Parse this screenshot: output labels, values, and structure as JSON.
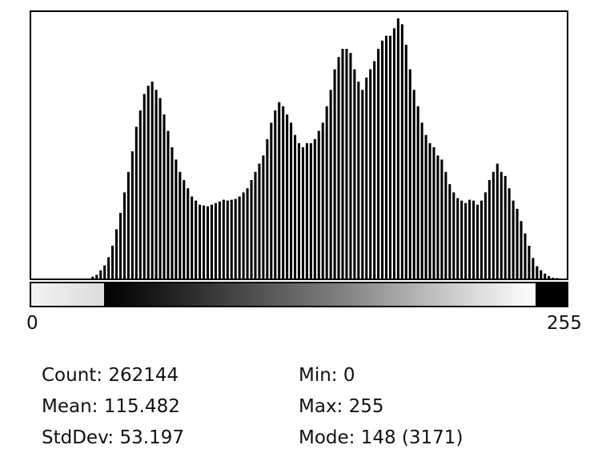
{
  "axis": {
    "min_label": "0",
    "max_label": "255"
  },
  "stats": {
    "count": "Count: 262144",
    "mean": "Mean: 115.482",
    "stddev": "StdDev: 53.197",
    "min": "Min: 0",
    "max": "Max: 255",
    "mode": "Mode: 148 (3171)"
  },
  "chart_data": {
    "type": "bar",
    "xlim": [
      0,
      255
    ],
    "ylim": [
      0,
      3171
    ],
    "grid": false,
    "series": [
      {
        "values": [
          0,
          0,
          0,
          0,
          0,
          0,
          0,
          0,
          0,
          0,
          0,
          0,
          0,
          0,
          0,
          22,
          45,
          100,
          160,
          260,
          400,
          600,
          800,
          1050,
          1300,
          1550,
          1850,
          2050,
          2250,
          2350,
          2400,
          2300,
          2200,
          2000,
          1800,
          1600,
          1450,
          1300,
          1200,
          1100,
          1000,
          950,
          900,
          890,
          880,
          900,
          920,
          940,
          960,
          950,
          960,
          970,
          1000,
          1050,
          1100,
          1200,
          1300,
          1400,
          1500,
          1700,
          1900,
          2050,
          2150,
          2100,
          2000,
          1900,
          1750,
          1650,
          1600,
          1650,
          1650,
          1700,
          1800,
          1900,
          2100,
          2300,
          2550,
          2700,
          2800,
          2800,
          2750,
          2550,
          2400,
          2300,
          2450,
          2550,
          2650,
          2800,
          2900,
          2960,
          2960,
          3050,
          3171,
          3100,
          2850,
          2550,
          2300,
          2100,
          1900,
          1750,
          1650,
          1600,
          1500,
          1450,
          1300,
          1150,
          1050,
          980,
          950,
          920,
          960,
          950,
          900,
          950,
          1050,
          1200,
          1300,
          1400,
          1300,
          1250,
          1100,
          950,
          850,
          700,
          550,
          400,
          250,
          150,
          100,
          60,
          30,
          10,
          5,
          0,
          0
        ]
      }
    ],
    "lut": {
      "gradient": [
        "#000000",
        "#ffffff"
      ],
      "under_color": "#e8e8e8",
      "over_color": "#000000"
    }
  }
}
